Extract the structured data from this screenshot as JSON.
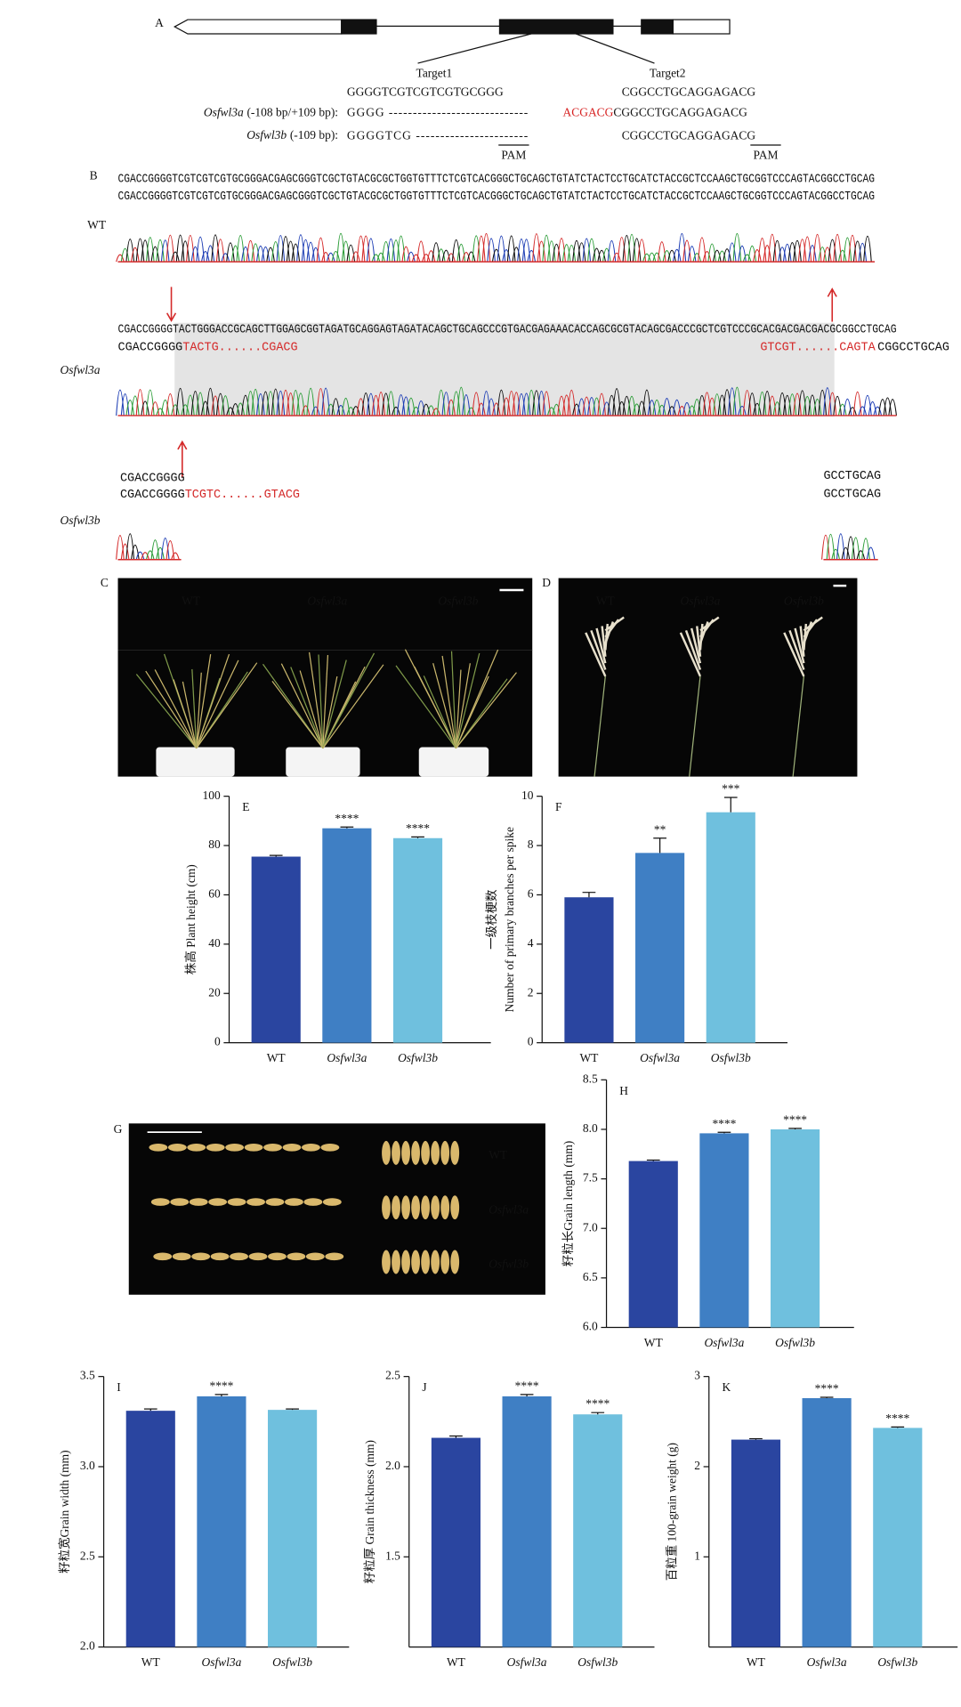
{
  "panel_a": {
    "label": "A",
    "target1": "Target1",
    "target2": "Target2",
    "wt_seq1": "GGGGTCGTCGTCGTGCGGG",
    "wt_seq2": "CGGCCTGCAGGAGACG",
    "mut_a_name": "Osfwl3a",
    "mut_a_note": "(-108 bp/+109 bp):",
    "mut_a_seq1": "GGGG -----------------------------",
    "mut_a_insert": "ACGACG",
    "mut_a_seq2": "CGGCCTGCAGGAGACG",
    "mut_b_name": "Osfwl3b",
    "mut_b_note": "(-109 bp):",
    "mut_b_seq1": "GGGGTCG -----------------------",
    "mut_b_seq2": "CGGCCTGCAGGAGACG",
    "pam": [
      "PAM",
      "PAM"
    ]
  },
  "panel_b": {
    "label": "B",
    "wt_label": "WT",
    "wt_read": "CGACCGGGGTCGTCGTCGTGCGGGACGAGCGGGTCGCTGTACGCGCTGGTGTTTCTCGTCACGGGCTGCAGCTGTATCTACTCCTGCATCTACCGCTCCAAGCTGCGGTCCCAGTACGGCCTGCAG",
    "wt_ref": "CGACCGGGGTCGTCGTCGTGCGGGACGAGCGGGTCGCTGTACGCGCTGGTGTTTCTCGTCACGGGCTGCAGCTGTATCTACTCCTGCATCTACCGCTCCAAGCTGCGGTCCCAGTACGGCCTGCAG",
    "a_label": "Osfwl3a",
    "a_read": "CGACCGGGGTACTGGGACCGCAGCTTGGAGCGGTAGATGCAGGAGTAGATACAGCTGCAGCCCGTGACGAGAAACACCAGCGCGTACAGCGACCCGCTCGTCCCGCACGACGACGACGCGGCCTGCAG",
    "a_ref_left": "CGACCGGGG",
    "a_ref_left_red": "TACTG......CGACG",
    "a_ref_right_red": "GTCGT......CAGTA",
    "a_ref_right": "CGGCCTGCAG",
    "b_label": "Osfwl3b",
    "b_read_left": "CGACCGGGG",
    "b_ref_left": "CGACCGGGG",
    "b_ref_left_red": "TCGTC......GTACG",
    "b_read_right": "GCCTGCAG",
    "b_ref_right": "GCCTGCAG"
  },
  "panel_c": {
    "label": "C",
    "columns": [
      "WT",
      "Osfwl3a",
      "Osfwl3b"
    ]
  },
  "panel_d": {
    "label": "D",
    "columns": [
      "WT",
      "Osfwl3a",
      "Osfwl3b"
    ]
  },
  "panel_g": {
    "label": "G",
    "rows": [
      "WT",
      "Osfwl3a",
      "Osfwl3b"
    ]
  },
  "chart_data": [
    {
      "type": "bar",
      "label": "E",
      "ylabel": "株高 Plant height (cm)",
      "categories": [
        "WT",
        "Osfwl3a",
        "Osfwl3b"
      ],
      "values": [
        75.5,
        87,
        83
      ],
      "errors": [
        0.5,
        0.5,
        0.5
      ],
      "annotations": [
        null,
        "****",
        "****"
      ],
      "colors": [
        "#2a45a0",
        "#3f7fc4",
        "#6fc0de"
      ],
      "ylim": [
        0,
        100
      ],
      "yticks": [
        0,
        20,
        40,
        60,
        80,
        100
      ]
    },
    {
      "type": "bar",
      "label": "F",
      "ylabel": [
        "一级枝梗数",
        "Number of primary branches per spike"
      ],
      "categories": [
        "WT",
        "Osfwl3a",
        "Osfwl3b"
      ],
      "values": [
        5.9,
        7.7,
        9.35
      ],
      "errors": [
        0.2,
        0.6,
        0.6
      ],
      "annotations": [
        null,
        "**",
        "***"
      ],
      "colors": [
        "#2a45a0",
        "#3f7fc4",
        "#6fc0de"
      ],
      "ylim": [
        0,
        10
      ],
      "yticks": [
        0,
        2,
        4,
        6,
        8,
        10
      ]
    },
    {
      "type": "bar",
      "label": "H",
      "ylabel": "籽粒长Grain length (mm)",
      "categories": [
        "WT",
        "Osfwl3a",
        "Osfwl3b"
      ],
      "values": [
        7.68,
        7.96,
        8.0
      ],
      "errors": [
        0.01,
        0.01,
        0.01
      ],
      "annotations": [
        null,
        "****",
        "****"
      ],
      "colors": [
        "#2a45a0",
        "#3f7fc4",
        "#6fc0de"
      ],
      "ylim": [
        6,
        8.5
      ],
      "yticks": [
        {
          "value": 6,
          "label": "6.0"
        },
        6.5,
        {
          "value": 7,
          "label": "7.0"
        },
        7.5,
        {
          "value": 8,
          "label": "8.0"
        },
        8.5
      ]
    },
    {
      "type": "bar",
      "label": "I",
      "ylabel": "籽粒宽Grain width (mm)",
      "categories": [
        "WT",
        "Osfwl3a",
        "Osfwl3b"
      ],
      "values": [
        3.31,
        3.39,
        3.315
      ],
      "errors": [
        0.01,
        0.01,
        0.005
      ],
      "annotations": [
        null,
        "****",
        null
      ],
      "colors": [
        "#2a45a0",
        "#3f7fc4",
        "#6fc0de"
      ],
      "ylim": [
        2,
        3.5
      ],
      "yticks": [
        {
          "value": 2,
          "label": "2.0"
        },
        2.5,
        {
          "value": 3,
          "label": "3.0"
        },
        3.5
      ]
    },
    {
      "type": "bar",
      "label": "J",
      "ylabel": "籽粒厚 Grain thickness (mm)",
      "categories": [
        "WT",
        "Osfwl3a",
        "Osfwl3b"
      ],
      "values": [
        2.16,
        2.39,
        2.29
      ],
      "errors": [
        0.01,
        0.01,
        0.01
      ],
      "annotations": [
        null,
        "****",
        "****"
      ],
      "colors": [
        "#2a45a0",
        "#3f7fc4",
        "#6fc0de"
      ],
      "ylim": [
        1,
        2.5
      ],
      "yticks": [
        1.5,
        {
          "value": 2,
          "label": "2.0"
        },
        2.5
      ]
    },
    {
      "type": "bar",
      "label": "K",
      "ylabel": "百粒重 100-grain weight (g)",
      "categories": [
        "WT",
        "Osfwl3a",
        "Osfwl3b"
      ],
      "values": [
        2.3,
        2.76,
        2.43
      ],
      "errors": [
        0.01,
        0.01,
        0.01
      ],
      "annotations": [
        null,
        "****",
        "****"
      ],
      "colors": [
        "#2a45a0",
        "#3f7fc4",
        "#6fc0de"
      ],
      "ylim": [
        0,
        3
      ],
      "yticks": [
        1,
        2,
        3
      ]
    }
  ]
}
